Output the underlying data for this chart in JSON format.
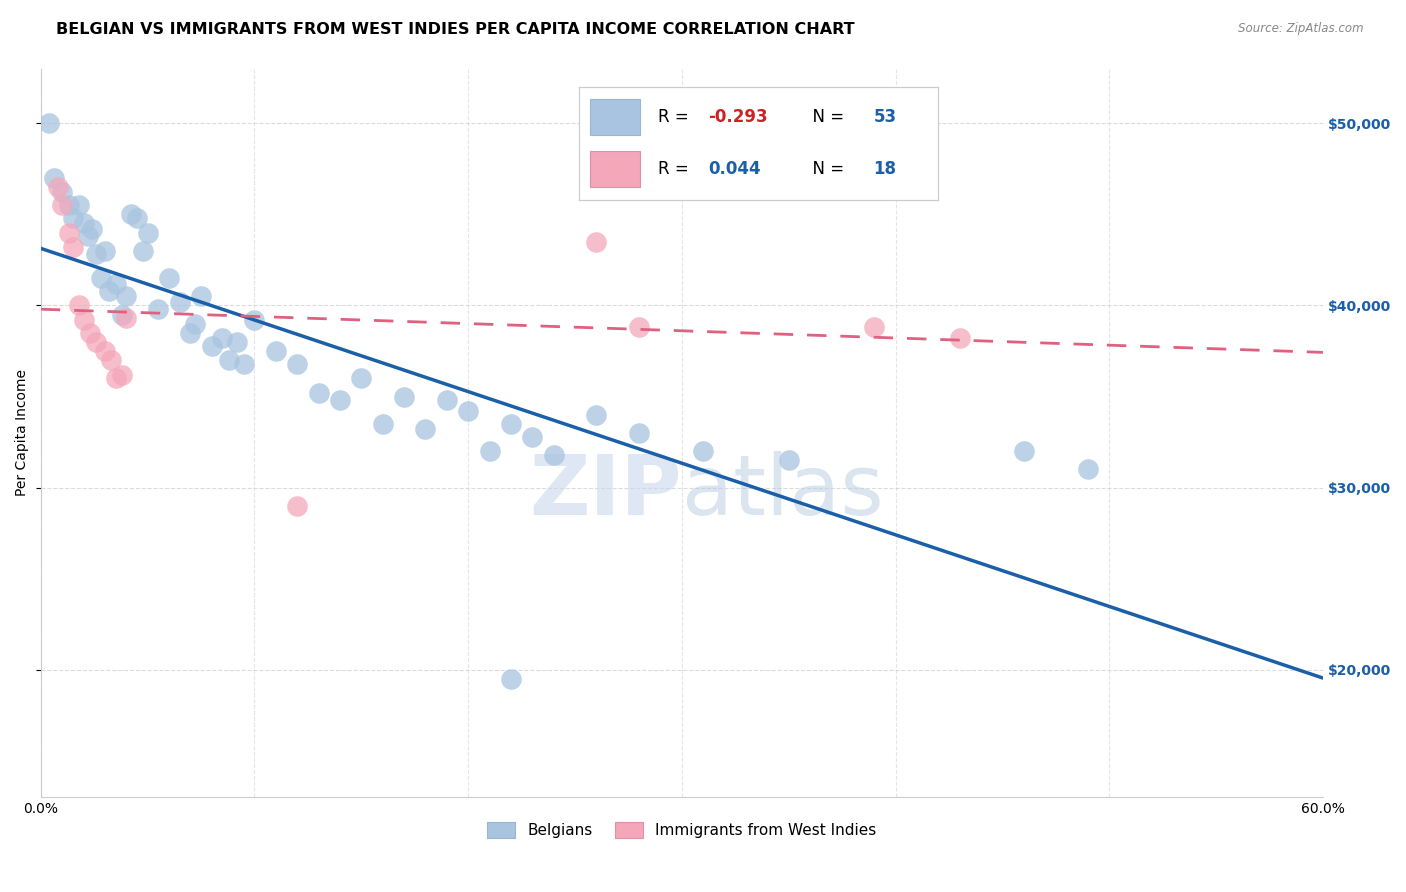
{
  "title": "BELGIAN VS IMMIGRANTS FROM WEST INDIES PER CAPITA INCOME CORRELATION CHART",
  "source": "Source: ZipAtlas.com",
  "ylabel": "Per Capita Income",
  "xlim": [
    0.0,
    0.6
  ],
  "ylim": [
    13000,
    53000
  ],
  "yticks": [
    20000,
    30000,
    40000,
    50000
  ],
  "ytick_labels": [
    "$20,000",
    "$30,000",
    "$40,000",
    "$50,000"
  ],
  "xticks": [
    0.0,
    0.1,
    0.2,
    0.3,
    0.4,
    0.5,
    0.6
  ],
  "xtick_labels": [
    "0.0%",
    "",
    "",
    "",
    "",
    "",
    "60.0%"
  ],
  "r_belgian": -0.293,
  "n_belgian": 53,
  "r_westindies": 0.044,
  "n_westindies": 18,
  "belgian_color": "#a8c4e0",
  "westindies_color": "#f4a7b9",
  "belgian_line_color": "#1a5fa8",
  "westindies_line_color": "#e06080",
  "belgian_x": [
    0.004,
    0.006,
    0.01,
    0.013,
    0.015,
    0.018,
    0.02,
    0.022,
    0.024,
    0.026,
    0.028,
    0.03,
    0.032,
    0.035,
    0.038,
    0.04,
    0.042,
    0.045,
    0.048,
    0.05,
    0.055,
    0.06,
    0.065,
    0.07,
    0.072,
    0.075,
    0.08,
    0.085,
    0.088,
    0.092,
    0.095,
    0.1,
    0.11,
    0.12,
    0.13,
    0.14,
    0.15,
    0.16,
    0.17,
    0.18,
    0.19,
    0.2,
    0.21,
    0.22,
    0.23,
    0.24,
    0.26,
    0.28,
    0.31,
    0.35,
    0.46,
    0.49,
    0.22
  ],
  "belgian_y": [
    50000,
    47000,
    46200,
    45500,
    44800,
    45500,
    44500,
    43800,
    44200,
    42800,
    41500,
    43000,
    40800,
    41200,
    39500,
    40500,
    45000,
    44800,
    43000,
    44000,
    39800,
    41500,
    40200,
    38500,
    39000,
    40500,
    37800,
    38200,
    37000,
    38000,
    36800,
    39200,
    37500,
    36800,
    35200,
    34800,
    36000,
    33500,
    35000,
    33200,
    34800,
    34200,
    32000,
    33500,
    32800,
    31800,
    34000,
    33000,
    32000,
    31500,
    32000,
    31000,
    19500
  ],
  "westindies_x": [
    0.008,
    0.01,
    0.013,
    0.015,
    0.018,
    0.02,
    0.023,
    0.026,
    0.03,
    0.033,
    0.035,
    0.038,
    0.04,
    0.12,
    0.26,
    0.28,
    0.39,
    0.43
  ],
  "westindies_y": [
    46500,
    45500,
    44000,
    43200,
    40000,
    39200,
    38500,
    38000,
    37500,
    37000,
    36000,
    36200,
    39300,
    29000,
    43500,
    38800,
    38800,
    38200
  ],
  "background_color": "#ffffff",
  "grid_color": "#cccccc",
  "title_fontsize": 11.5,
  "axis_label_fontsize": 10,
  "tick_fontsize": 10,
  "watermark_color": "#d0dce8",
  "watermark_fontsize": 60,
  "r_color": "#1a5fa8",
  "n_color": "#1a5fa8",
  "r_neg_color": "#cc2222"
}
